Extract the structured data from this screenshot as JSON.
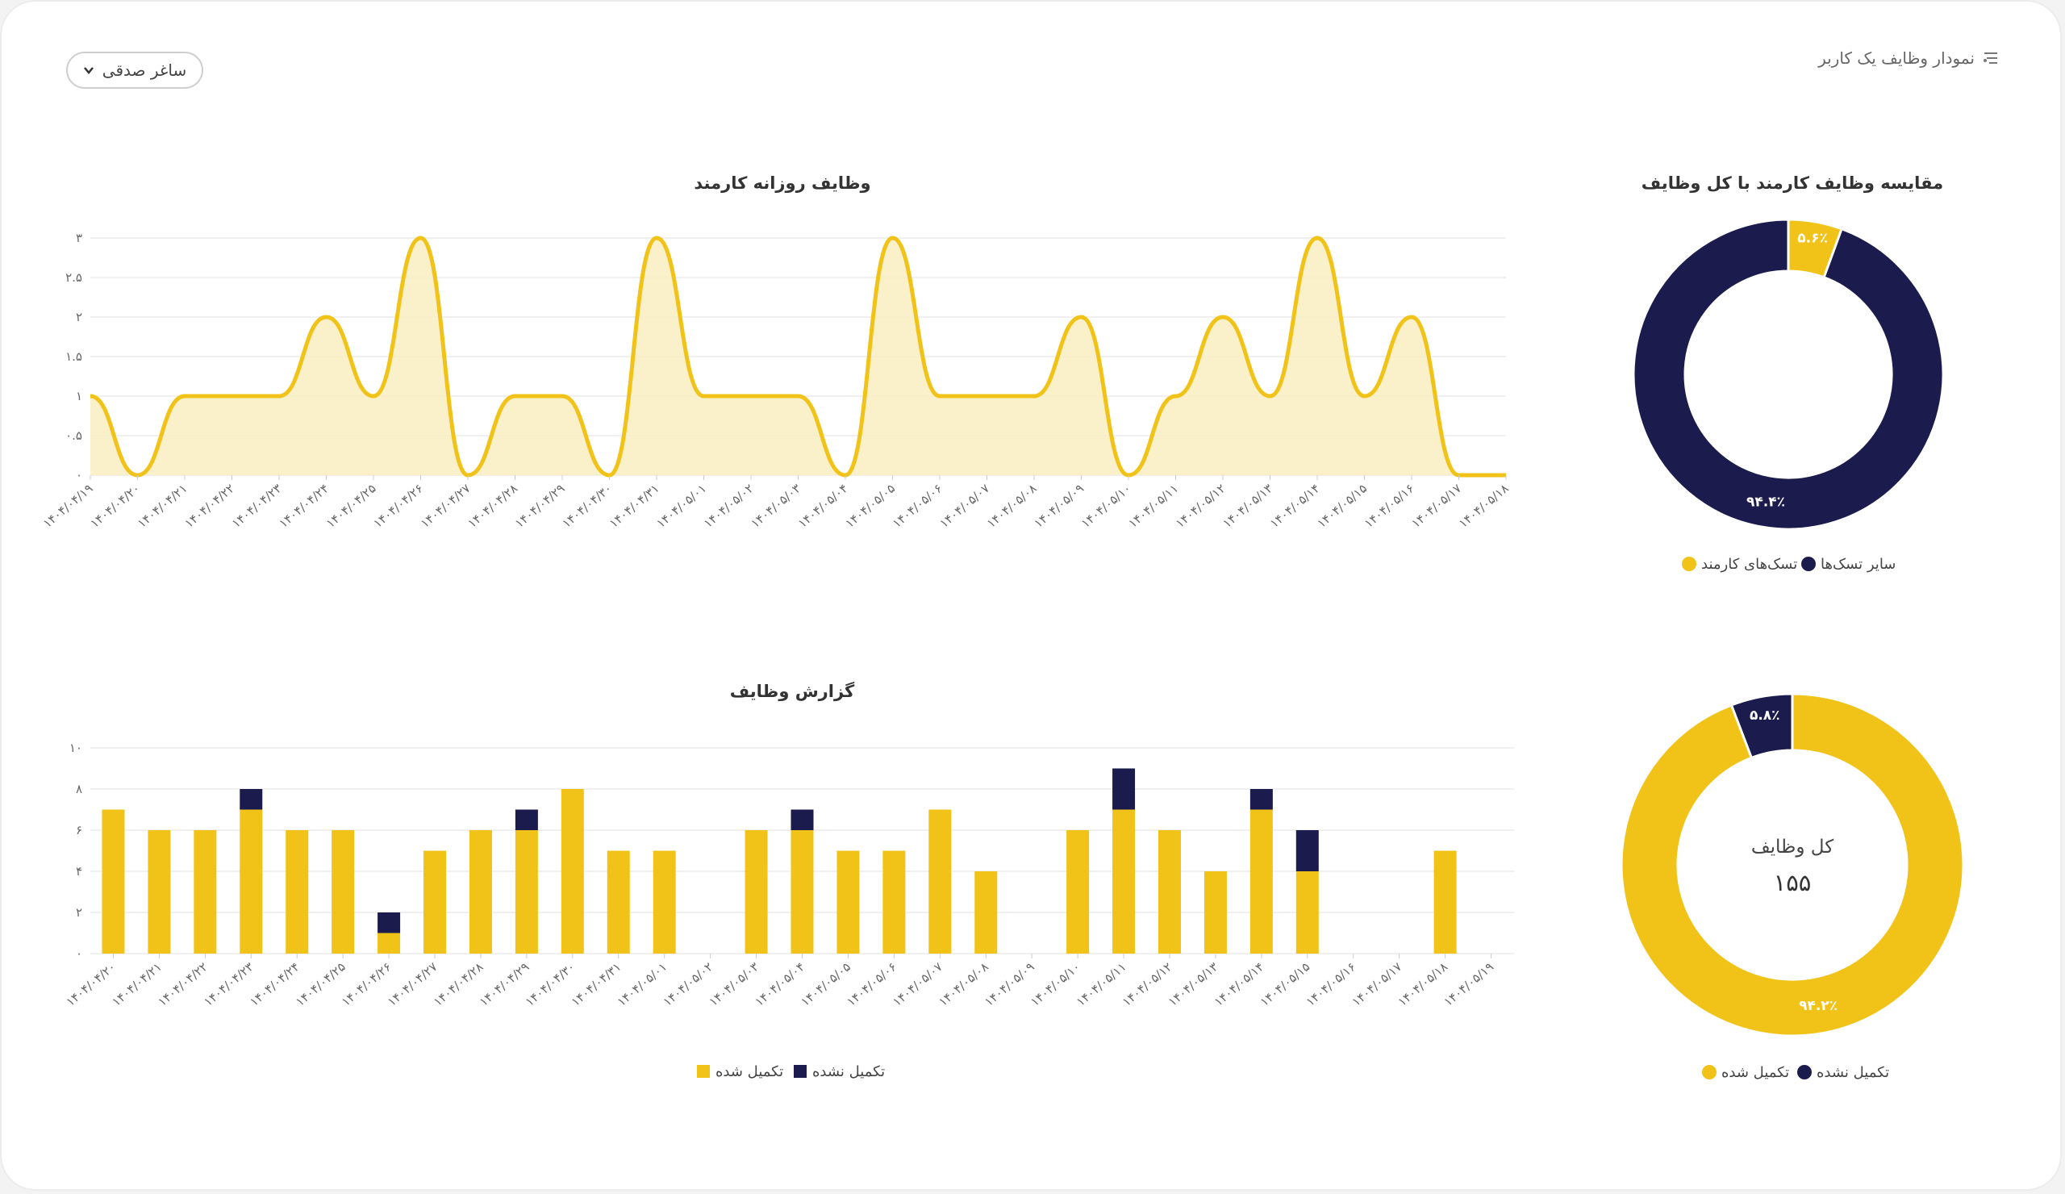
{
  "header": {
    "title": "نمودار وظایف یک کاربر",
    "icon": "list-filter-icon"
  },
  "user_select": {
    "value": "ساغر صدقی",
    "icon": "chevron-down-icon"
  },
  "colors": {
    "yellow": "#F1C319",
    "navy": "#1C1B4D",
    "area_fill": "#F9EDC0"
  },
  "chart_data": [
    {
      "type": "area",
      "title": "وظایف روزانه کارمند",
      "x": [
        "۱۴۰۴/۰۴/۱۹",
        "۱۴۰۴/۰۴/۲۰",
        "۱۴۰۴/۰۴/۲۱",
        "۱۴۰۴/۰۴/۲۲",
        "۱۴۰۴/۰۴/۲۳",
        "۱۴۰۴/۰۴/۲۴",
        "۱۴۰۴/۰۴/۲۵",
        "۱۴۰۴/۰۴/۲۶",
        "۱۴۰۴/۰۴/۲۷",
        "۱۴۰۴/۰۴/۲۸",
        "۱۴۰۴/۰۴/۲۹",
        "۱۴۰۴/۰۴/۳۰",
        "۱۴۰۴/۰۴/۳۱",
        "۱۴۰۴/۰۵/۰۱",
        "۱۴۰۴/۰۵/۰۲",
        "۱۴۰۴/۰۵/۰۳",
        "۱۴۰۴/۰۵/۰۴",
        "۱۴۰۴/۰۵/۰۵",
        "۱۴۰۴/۰۵/۰۶",
        "۱۴۰۴/۰۵/۰۷",
        "۱۴۰۴/۰۵/۰۸",
        "۱۴۰۴/۰۵/۰۹",
        "۱۴۰۴/۰۵/۱۰",
        "۱۴۰۴/۰۵/۱۱",
        "۱۴۰۴/۰۵/۱۲",
        "۱۴۰۴/۰۵/۱۳",
        "۱۴۰۴/۰۵/۱۴",
        "۱۴۰۴/۰۵/۱۵",
        "۱۴۰۴/۰۵/۱۶",
        "۱۴۰۴/۰۵/۱۷",
        "۱۴۰۴/۰۵/۱۸"
      ],
      "values": [
        1,
        0,
        1,
        1,
        1,
        2,
        1,
        3,
        0,
        1,
        1,
        0,
        3,
        1,
        1,
        1,
        0,
        3,
        1,
        1,
        1,
        2,
        0,
        1,
        2,
        1,
        3,
        1,
        2,
        0,
        0
      ],
      "ylim": [
        0,
        3
      ],
      "yticks": [
        0,
        0.5,
        1,
        1.5,
        2,
        2.5,
        3
      ],
      "ytick_labels": [
        "۰",
        "۰.۵",
        "۱",
        "۱.۵",
        "۲",
        "۲.۵",
        "۳"
      ],
      "grid": true
    },
    {
      "type": "bar",
      "stacked": true,
      "title": "گزارش وظایف",
      "categories": [
        "۱۴۰۴/۰۴/۲۰",
        "۱۴۰۴/۰۴/۲۱",
        "۱۴۰۴/۰۴/۲۲",
        "۱۴۰۴/۰۴/۲۳",
        "۱۴۰۴/۰۴/۲۴",
        "۱۴۰۴/۰۴/۲۵",
        "۱۴۰۴/۰۴/۲۶",
        "۱۴۰۴/۰۴/۲۷",
        "۱۴۰۴/۰۴/۲۸",
        "۱۴۰۴/۰۴/۲۹",
        "۱۴۰۴/۰۴/۳۰",
        "۱۴۰۴/۰۴/۳۱",
        "۱۴۰۴/۰۵/۰۱",
        "۱۴۰۴/۰۵/۰۲",
        "۱۴۰۴/۰۵/۰۳",
        "۱۴۰۴/۰۵/۰۴",
        "۱۴۰۴/۰۵/۰۵",
        "۱۴۰۴/۰۵/۰۶",
        "۱۴۰۴/۰۵/۰۷",
        "۱۴۰۴/۰۵/۰۸",
        "۱۴۰۴/۰۵/۰۹",
        "۱۴۰۴/۰۵/۱۰",
        "۱۴۰۴/۰۵/۱۱",
        "۱۴۰۴/۰۵/۱۲",
        "۱۴۰۴/۰۵/۱۳",
        "۱۴۰۴/۰۵/۱۴",
        "۱۴۰۴/۰۵/۱۵",
        "۱۴۰۴/۰۵/۱۶",
        "۱۴۰۴/۰۵/۱۷",
        "۱۴۰۴/۰۵/۱۸",
        "۱۴۰۴/۰۵/۱۹"
      ],
      "series": [
        {
          "name": "تکمیل شده",
          "color": "#F1C319",
          "values": [
            7,
            6,
            6,
            7,
            6,
            6,
            1,
            5,
            6,
            6,
            8,
            5,
            5,
            0,
            6,
            6,
            5,
            5,
            7,
            4,
            0,
            6,
            7,
            6,
            4,
            7,
            4,
            0,
            0,
            5,
            0
          ]
        },
        {
          "name": "تکمیل نشده",
          "color": "#1C1B4D",
          "values": [
            0,
            0,
            0,
            1,
            0,
            0,
            1,
            0,
            0,
            1,
            0,
            0,
            0,
            0,
            0,
            1,
            0,
            0,
            0,
            0,
            0,
            0,
            2,
            0,
            0,
            1,
            2,
            0,
            0,
            0,
            0
          ]
        }
      ],
      "ylim": [
        0,
        10
      ],
      "yticks": [
        0,
        2,
        4,
        6,
        8,
        10
      ],
      "ytick_labels": [
        "۰",
        "۲",
        "۴",
        "۶",
        "۸",
        "۱۰"
      ],
      "grid": true,
      "legend_position": "bottom"
    },
    {
      "type": "pie",
      "donut": true,
      "title": "مقایسه وظایف کارمند با کل وظایف",
      "slices": [
        {
          "name": "تسک‌های کارمند",
          "value": 5.6,
          "label": "۵.۶٪",
          "color": "#F1C319"
        },
        {
          "name": "سایر تسک‌ها",
          "value": 94.4,
          "label": "۹۴.۴٪",
          "color": "#1C1B4D"
        }
      ],
      "legend_position": "bottom"
    },
    {
      "type": "pie",
      "donut": true,
      "center_title": "کل وظایف",
      "center_value": "۱۵۵",
      "slices": [
        {
          "name": "تکمیل شده",
          "value": 94.2,
          "label": "۹۴.۲٪",
          "color": "#F1C319"
        },
        {
          "name": "تکمیل نشده",
          "value": 5.8,
          "label": "۵.۸٪",
          "color": "#1C1B4D"
        }
      ],
      "legend_position": "bottom"
    }
  ]
}
